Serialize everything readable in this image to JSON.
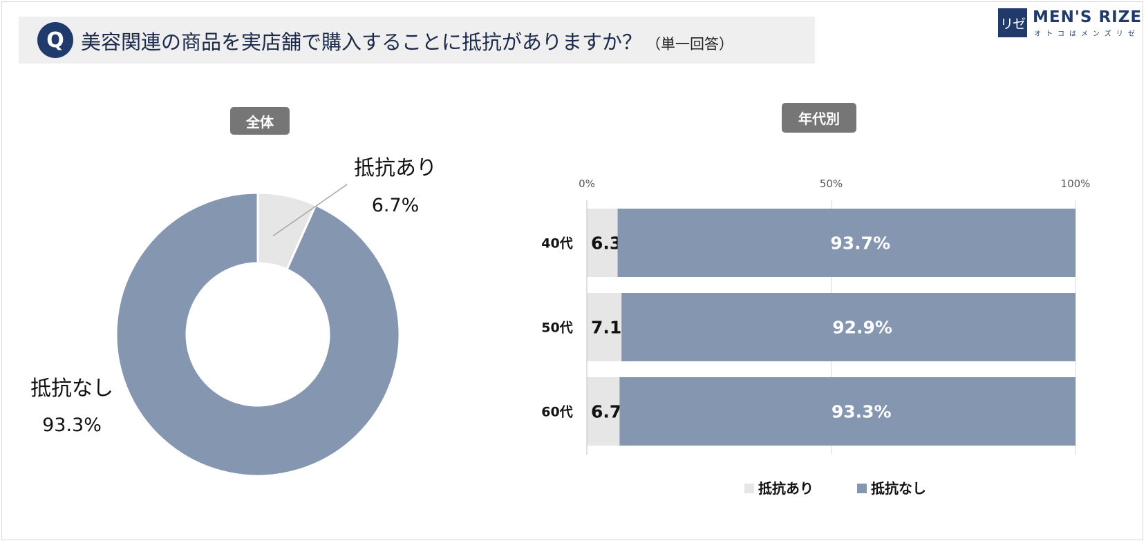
{
  "header": {
    "q_badge": "Q",
    "question": "美容関連の商品を実店舗で購入することに抵抗がありますか？",
    "note": "（単一回答）"
  },
  "logo": {
    "badge": "リゼ",
    "name": "MEN'S RIZE",
    "sub": "オトコはメンズリゼ"
  },
  "colors": {
    "yes": "#e6e6e6",
    "no": "#8496b0",
    "grid": "#d9d9d9"
  },
  "chart_data": [
    {
      "type": "pie",
      "variant": "donut",
      "title": "全体",
      "slices": [
        {
          "label": "抵抗あり",
          "value": 6.7,
          "display": "6.7%"
        },
        {
          "label": "抵抗なし",
          "value": 93.3,
          "display": "93.3%"
        }
      ]
    },
    {
      "type": "bar",
      "orientation": "horizontal",
      "stacked": true,
      "title": "年代別",
      "categories": [
        "40代",
        "50代",
        "60代"
      ],
      "series": [
        {
          "name": "抵抗あり",
          "values": [
            6.3,
            7.1,
            6.7
          ],
          "labels": [
            "6.3%",
            "7.1%",
            "6.7%"
          ]
        },
        {
          "name": "抵抗なし",
          "values": [
            93.7,
            92.9,
            93.3
          ],
          "labels": [
            "93.7%",
            "92.9%",
            "93.3%"
          ]
        }
      ],
      "xticks": [
        "0%",
        "50%",
        "100%"
      ],
      "xlim": [
        0,
        100
      ],
      "legend_position": "bottom"
    }
  ]
}
